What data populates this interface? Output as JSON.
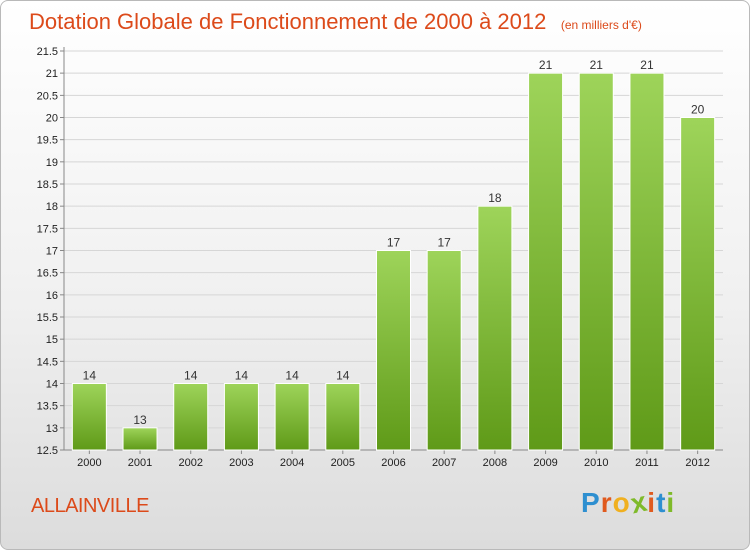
{
  "header": {
    "title": "Dotation Globale de Fonctionnement de 2000 à 2012",
    "unit": "(en milliers d'€)"
  },
  "footer": {
    "commune": "ALLAINVILLE",
    "logo_letters": [
      "P",
      "r",
      "o",
      "x",
      "i",
      "t",
      "i"
    ],
    "logo_colors": [
      "#2e8fd0",
      "#e05a1e",
      "#f0b020",
      "#7fba2a",
      "#e05a1e",
      "#2e8fd0",
      "#7fba2a"
    ]
  },
  "colors": {
    "title": "#dc4a1a",
    "bar_top": "#9ed45a",
    "bar_bottom": "#5f9a18",
    "grid": "#d6d6d6"
  },
  "chart_data": {
    "type": "bar",
    "title": "Dotation Globale de Fonctionnement de 2000 à 2012",
    "xlabel": "",
    "ylabel": "",
    "categories": [
      "2000",
      "2001",
      "2002",
      "2003",
      "2004",
      "2005",
      "2006",
      "2007",
      "2008",
      "2009",
      "2010",
      "2011",
      "2012"
    ],
    "values": [
      14,
      13,
      14,
      14,
      14,
      14,
      17,
      17,
      18,
      21,
      21,
      21,
      20
    ],
    "ylim": [
      12.5,
      21.5
    ],
    "yticks": [
      "12.5",
      "13",
      "13.5",
      "14",
      "14.5",
      "15",
      "15.5",
      "16",
      "16.5",
      "17",
      "17.5",
      "18",
      "18.5",
      "19",
      "19.5",
      "20",
      "20.5",
      "21",
      "21.5"
    ],
    "grid": true,
    "legend": "none"
  }
}
